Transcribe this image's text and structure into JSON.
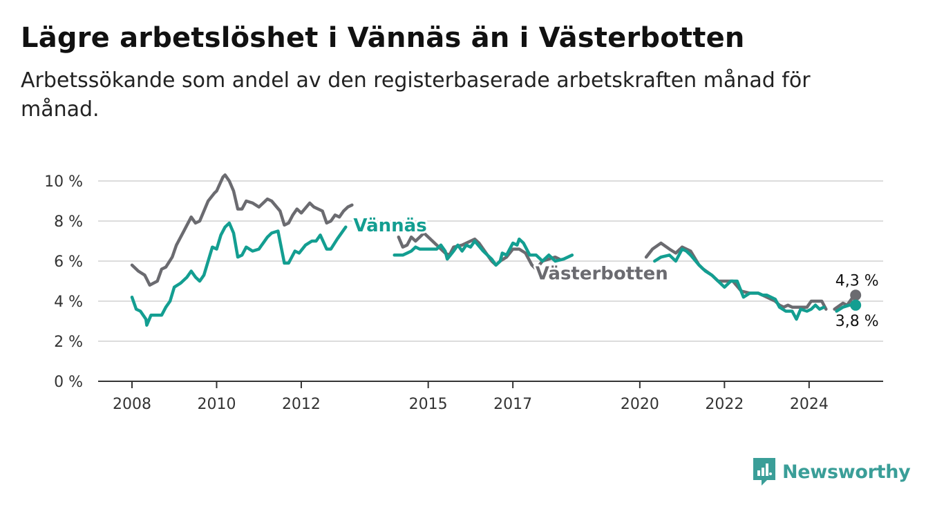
{
  "title": "Lägre arbetslöshet i Vännäs än i Västerbotten",
  "subtitle": "Arbetssökande som andel av den registerbaserade arbetskraften månad för månad.",
  "brand": {
    "name": "Newsworthy",
    "icon": "newsworthy-logo-icon",
    "color": "#3a9e98"
  },
  "chart_data": {
    "type": "line",
    "ylim": [
      0,
      10
    ],
    "yticks": [
      "0 %",
      "2 %",
      "4 %",
      "6 %",
      "8 %",
      "10 %"
    ],
    "yticks_values": [
      0,
      2,
      4,
      6,
      8,
      10
    ],
    "xticks": [
      "2008",
      "2010",
      "2012",
      "2015",
      "2017",
      "2020",
      "2022",
      "2024"
    ],
    "xticks_values": [
      2008,
      2010,
      2012,
      2015,
      2017,
      2020,
      2022,
      2024
    ],
    "xlim": [
      2007.2,
      2025.75
    ],
    "grid": true,
    "series": [
      {
        "name": "Västerbotten",
        "color": "#6b6b70",
        "end_label": "4,3 %",
        "points": [
          [
            2008.0,
            5.8
          ],
          [
            2008.15,
            5.5
          ],
          [
            2008.3,
            5.3
          ],
          [
            2008.35,
            5.1
          ],
          [
            2008.42,
            4.8
          ],
          [
            2008.6,
            5.0
          ],
          [
            2008.7,
            5.6
          ],
          [
            2008.8,
            5.7
          ],
          [
            2008.95,
            6.2
          ],
          [
            2009.05,
            6.8
          ],
          [
            2009.2,
            7.4
          ],
          [
            2009.4,
            8.2
          ],
          [
            2009.5,
            7.9
          ],
          [
            2009.6,
            8.0
          ],
          [
            2009.8,
            9.0
          ],
          [
            2009.95,
            9.4
          ],
          [
            2010.0,
            9.5
          ],
          [
            2010.15,
            10.2
          ],
          [
            2010.2,
            10.3
          ],
          [
            2010.3,
            10.0
          ],
          [
            2010.4,
            9.5
          ],
          [
            2010.5,
            8.6
          ],
          [
            2010.6,
            8.6
          ],
          [
            2010.7,
            9.0
          ],
          [
            2010.85,
            8.9
          ],
          [
            2011.0,
            8.7
          ],
          [
            2011.2,
            9.1
          ],
          [
            2011.3,
            9.0
          ],
          [
            2011.5,
            8.5
          ],
          [
            2011.6,
            7.8
          ],
          [
            2011.7,
            7.9
          ],
          [
            2011.8,
            8.3
          ],
          [
            2011.9,
            8.6
          ],
          [
            2012.0,
            8.4
          ],
          [
            2012.2,
            8.9
          ],
          [
            2012.3,
            8.7
          ],
          [
            2012.5,
            8.5
          ],
          [
            2012.6,
            7.9
          ],
          [
            2012.7,
            8.0
          ],
          [
            2012.8,
            8.3
          ],
          [
            2012.9,
            8.2
          ],
          [
            2013.0,
            8.5
          ],
          [
            2013.1,
            8.7
          ],
          [
            2013.2,
            8.8
          ]
        ],
        "points_b": [
          [
            2014.3,
            7.2
          ],
          [
            2014.4,
            6.7
          ],
          [
            2014.5,
            6.8
          ],
          [
            2014.6,
            7.2
          ],
          [
            2014.7,
            7.0
          ],
          [
            2014.8,
            7.2
          ],
          [
            2014.9,
            7.4
          ],
          [
            2015.0,
            7.2
          ],
          [
            2015.2,
            6.8
          ],
          [
            2015.4,
            6.4
          ],
          [
            2015.5,
            6.3
          ],
          [
            2015.6,
            6.7
          ],
          [
            2015.8,
            6.8
          ],
          [
            2016.0,
            7.0
          ],
          [
            2016.1,
            7.1
          ],
          [
            2016.2,
            6.9
          ],
          [
            2016.3,
            6.6
          ],
          [
            2016.5,
            6.0
          ],
          [
            2016.6,
            5.8
          ],
          [
            2016.7,
            6.0
          ],
          [
            2016.85,
            6.2
          ],
          [
            2017.0,
            6.6
          ],
          [
            2017.15,
            6.6
          ],
          [
            2017.3,
            6.4
          ],
          [
            2017.45,
            5.8
          ],
          [
            2017.55,
            5.6
          ],
          [
            2017.7,
            6.0
          ],
          [
            2017.85,
            6.1
          ],
          [
            2018.0,
            6.2
          ],
          [
            2018.1,
            6.1
          ]
        ],
        "points_c": [
          [
            2020.15,
            6.2
          ],
          [
            2020.3,
            6.6
          ],
          [
            2020.5,
            6.9
          ],
          [
            2020.7,
            6.6
          ],
          [
            2020.85,
            6.4
          ],
          [
            2021.0,
            6.7
          ],
          [
            2021.2,
            6.5
          ],
          [
            2021.4,
            5.8
          ],
          [
            2021.5,
            5.6
          ],
          [
            2021.7,
            5.3
          ],
          [
            2021.85,
            5.0
          ],
          [
            2022.0,
            5.0
          ],
          [
            2022.2,
            5.0
          ],
          [
            2022.4,
            4.5
          ],
          [
            2022.6,
            4.4
          ],
          [
            2022.8,
            4.4
          ],
          [
            2022.9,
            4.3
          ],
          [
            2023.0,
            4.2
          ],
          [
            2023.2,
            4.0
          ],
          [
            2023.3,
            3.8
          ],
          [
            2023.4,
            3.7
          ],
          [
            2023.5,
            3.8
          ],
          [
            2023.6,
            3.7
          ],
          [
            2023.8,
            3.7
          ],
          [
            2023.95,
            3.7
          ],
          [
            2024.05,
            4.0
          ],
          [
            2024.3,
            4.0
          ],
          [
            2024.4,
            3.6
          ]
        ],
        "points_d": [
          [
            2024.6,
            3.6
          ],
          [
            2024.8,
            3.9
          ],
          [
            2024.9,
            3.8
          ],
          [
            2025.0,
            4.1
          ],
          [
            2025.1,
            4.3
          ]
        ]
      },
      {
        "name": "Vännäs",
        "color": "#139e91",
        "end_label": "3,8 %",
        "points": [
          [
            2008.0,
            4.2
          ],
          [
            2008.1,
            3.6
          ],
          [
            2008.2,
            3.5
          ],
          [
            2008.33,
            3.1
          ],
          [
            2008.35,
            2.8
          ],
          [
            2008.45,
            3.3
          ],
          [
            2008.7,
            3.3
          ],
          [
            2008.8,
            3.7
          ],
          [
            2008.9,
            4.0
          ],
          [
            2009.0,
            4.7
          ],
          [
            2009.15,
            4.9
          ],
          [
            2009.3,
            5.2
          ],
          [
            2009.4,
            5.5
          ],
          [
            2009.5,
            5.2
          ],
          [
            2009.6,
            5.0
          ],
          [
            2009.7,
            5.3
          ],
          [
            2009.8,
            6.0
          ],
          [
            2009.9,
            6.7
          ],
          [
            2010.0,
            6.6
          ],
          [
            2010.1,
            7.3
          ],
          [
            2010.2,
            7.7
          ],
          [
            2010.3,
            7.9
          ],
          [
            2010.4,
            7.4
          ],
          [
            2010.5,
            6.2
          ],
          [
            2010.6,
            6.3
          ],
          [
            2010.7,
            6.7
          ],
          [
            2010.85,
            6.5
          ],
          [
            2011.0,
            6.6
          ],
          [
            2011.2,
            7.2
          ],
          [
            2011.3,
            7.4
          ],
          [
            2011.45,
            7.5
          ],
          [
            2011.6,
            5.9
          ],
          [
            2011.7,
            5.9
          ],
          [
            2011.85,
            6.5
          ],
          [
            2011.95,
            6.4
          ],
          [
            2012.1,
            6.8
          ],
          [
            2012.25,
            7.0
          ],
          [
            2012.35,
            7.0
          ],
          [
            2012.45,
            7.3
          ],
          [
            2012.6,
            6.6
          ],
          [
            2012.7,
            6.6
          ],
          [
            2012.85,
            7.1
          ],
          [
            2012.95,
            7.4
          ],
          [
            2013.05,
            7.7
          ]
        ],
        "points_b": [
          [
            2014.2,
            6.3
          ],
          [
            2014.4,
            6.3
          ],
          [
            2014.5,
            6.4
          ],
          [
            2014.6,
            6.5
          ],
          [
            2014.7,
            6.7
          ],
          [
            2014.8,
            6.6
          ],
          [
            2015.0,
            6.6
          ],
          [
            2015.2,
            6.6
          ],
          [
            2015.3,
            6.8
          ],
          [
            2015.4,
            6.5
          ],
          [
            2015.45,
            6.1
          ],
          [
            2015.6,
            6.5
          ],
          [
            2015.7,
            6.8
          ],
          [
            2015.8,
            6.5
          ],
          [
            2015.9,
            6.8
          ],
          [
            2016.0,
            6.7
          ],
          [
            2016.1,
            7.0
          ],
          [
            2016.3,
            6.5
          ],
          [
            2016.5,
            6.1
          ],
          [
            2016.6,
            5.8
          ],
          [
            2016.7,
            6.0
          ],
          [
            2016.75,
            6.4
          ],
          [
            2016.85,
            6.3
          ],
          [
            2017.0,
            6.9
          ],
          [
            2017.1,
            6.8
          ],
          [
            2017.15,
            7.1
          ],
          [
            2017.25,
            6.9
          ],
          [
            2017.4,
            6.3
          ],
          [
            2017.55,
            6.3
          ],
          [
            2017.7,
            6.0
          ],
          [
            2017.85,
            6.3
          ],
          [
            2018.0,
            6.0
          ],
          [
            2018.2,
            6.1
          ],
          [
            2018.3,
            6.2
          ],
          [
            2018.4,
            6.3
          ]
        ],
        "points_c": [
          [
            2020.35,
            6.0
          ],
          [
            2020.5,
            6.2
          ],
          [
            2020.7,
            6.3
          ],
          [
            2020.85,
            6.0
          ],
          [
            2021.0,
            6.6
          ],
          [
            2021.1,
            6.5
          ],
          [
            2021.2,
            6.3
          ],
          [
            2021.4,
            5.8
          ],
          [
            2021.55,
            5.5
          ],
          [
            2021.7,
            5.3
          ],
          [
            2021.85,
            5.0
          ],
          [
            2022.0,
            4.7
          ],
          [
            2022.15,
            5.0
          ],
          [
            2022.3,
            5.0
          ],
          [
            2022.45,
            4.2
          ],
          [
            2022.6,
            4.4
          ],
          [
            2022.8,
            4.4
          ],
          [
            2022.9,
            4.3
          ],
          [
            2023.0,
            4.3
          ],
          [
            2023.2,
            4.1
          ],
          [
            2023.3,
            3.7
          ],
          [
            2023.45,
            3.5
          ],
          [
            2023.6,
            3.5
          ],
          [
            2023.7,
            3.1
          ],
          [
            2023.8,
            3.6
          ],
          [
            2023.95,
            3.5
          ],
          [
            2024.05,
            3.6
          ],
          [
            2024.15,
            3.8
          ],
          [
            2024.25,
            3.6
          ],
          [
            2024.35,
            3.7
          ]
        ],
        "points_d": [
          [
            2024.65,
            3.5
          ],
          [
            2024.8,
            3.7
          ],
          [
            2024.95,
            3.8
          ],
          [
            2025.1,
            3.8
          ]
        ]
      }
    ],
    "labels": [
      {
        "text": "Vännäs",
        "series": "Vännäs",
        "x": 2014.1,
        "y": 7.8
      },
      {
        "text": "Västerbotten",
        "series": "Västerbotten",
        "x": 2019.1,
        "y": 5.4
      }
    ]
  }
}
